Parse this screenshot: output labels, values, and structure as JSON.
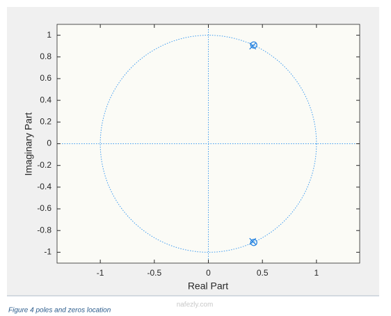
{
  "chart_data": {
    "type": "pole-zero",
    "xlabel": "Real Part",
    "ylabel": "Imaginary Part",
    "xlim": [
      -1.4,
      1.4
    ],
    "ylim": [
      -1.1,
      1.1
    ],
    "xticks": [
      -1,
      -0.5,
      0,
      0.5,
      1
    ],
    "yticks": [
      -1,
      -0.8,
      -0.6,
      -0.4,
      -0.2,
      0,
      0.2,
      0.4,
      0.6,
      0.8,
      1
    ],
    "unit_circle": {
      "radius": 1,
      "color": "#3d9bef"
    },
    "series": [
      {
        "name": "Zeros",
        "marker": "circle",
        "color": "#1f7fe0",
        "x": [
          0.42,
          0.42
        ],
        "y": [
          0.91,
          -0.91
        ]
      },
      {
        "name": "Poles",
        "marker": "x",
        "color": "#1f7fe0",
        "x": [
          0.41,
          0.41
        ],
        "y": [
          0.9,
          -0.9
        ]
      }
    ]
  },
  "caption": "Figure 4 poles and zeros location",
  "watermark": "nafezly.com"
}
